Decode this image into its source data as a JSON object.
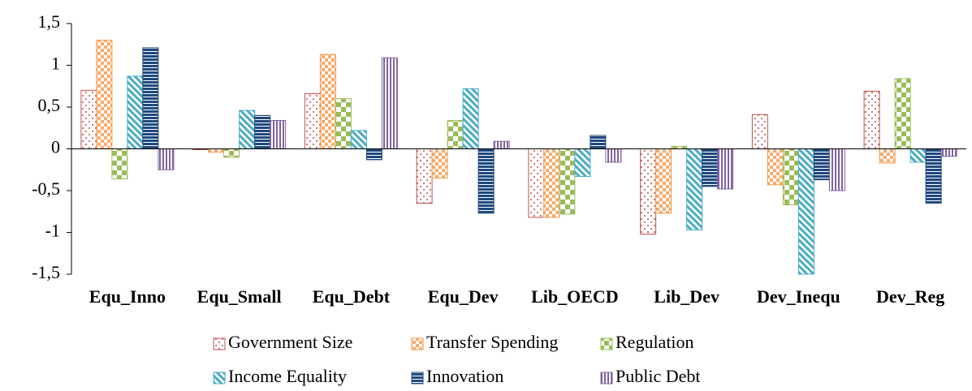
{
  "chart_data": {
    "type": "bar",
    "categories": [
      "Equ_Inno",
      "Equ_Small",
      "Equ_Debt",
      "Equ_Dev",
      "Lib_OECD",
      "Lib_Dev",
      "Dev_Inequ",
      "Dev_Reg"
    ],
    "series": [
      {
        "name": "Government Size",
        "color": "#c0504d",
        "values": [
          0.7,
          -0.01,
          0.66,
          -0.65,
          -0.82,
          -1.02,
          0.41,
          0.69
        ]
      },
      {
        "name": "Transfer Spending",
        "color": "#f79646",
        "values": [
          1.3,
          -0.04,
          1.13,
          -0.35,
          -0.82,
          -0.77,
          -0.43,
          -0.17
        ]
      },
      {
        "name": "Regulation",
        "color": "#9bbb59",
        "values": [
          -0.36,
          -0.1,
          0.6,
          0.34,
          -0.78,
          0.03,
          -0.67,
          0.84
        ]
      },
      {
        "name": "Income Equality",
        "color": "#4bacc6",
        "values": [
          0.87,
          0.46,
          0.22,
          0.72,
          -0.33,
          -0.97,
          -1.5,
          -0.16
        ]
      },
      {
        "name": "Innovation",
        "color": "#1f497d",
        "values": [
          1.21,
          0.4,
          -0.13,
          -0.77,
          0.16,
          -0.45,
          -0.37,
          -0.65
        ]
      },
      {
        "name": "Public Debt",
        "color": "#8064a2",
        "values": [
          -0.25,
          0.34,
          1.09,
          0.09,
          -0.16,
          -0.48,
          -0.5,
          -0.09
        ]
      }
    ],
    "ylim": [
      -1.5,
      1.5
    ],
    "yticks": [
      {
        "value": -1.5,
        "label": "-1,5"
      },
      -1,
      {
        "value": -0.5,
        "label": "-0,5"
      },
      0,
      {
        "value": 0.5,
        "label": "0,5"
      },
      1,
      {
        "value": 1.5,
        "label": "1,5"
      }
    ],
    "grid": false,
    "legend": "bottom"
  }
}
